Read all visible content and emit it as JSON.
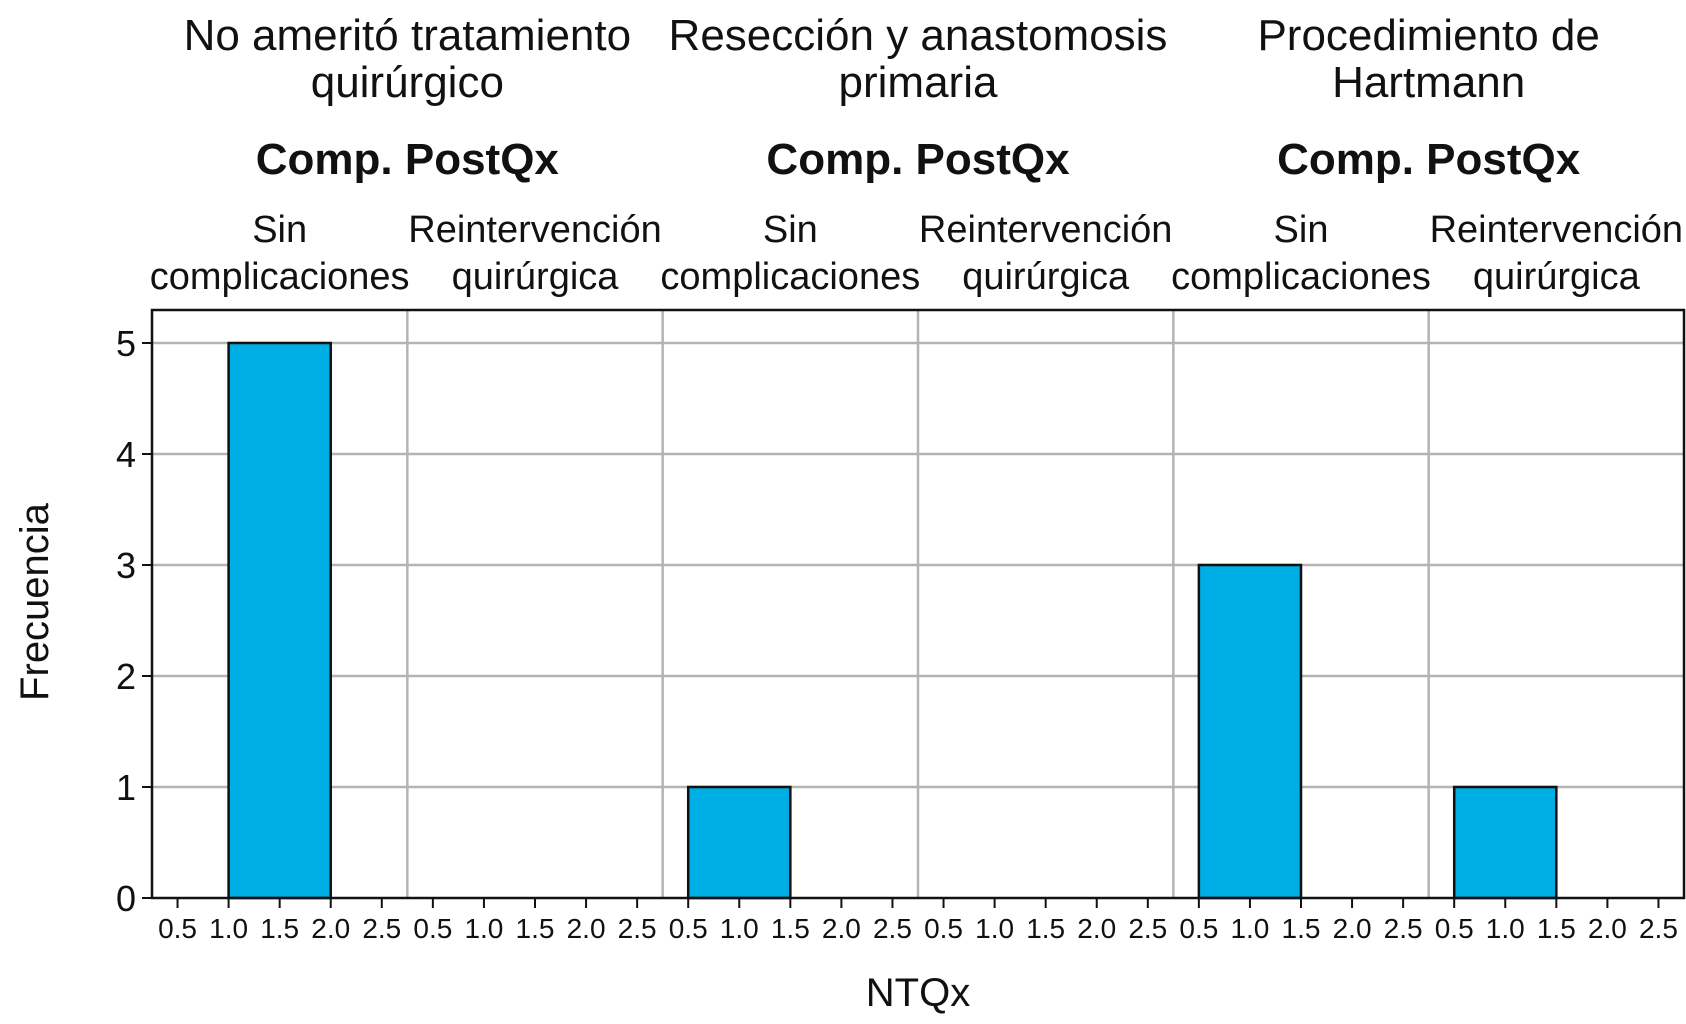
{
  "chart_data": {
    "type": "bar",
    "xlabel": "NTQx",
    "ylabel": "Frecuencia",
    "ylim": [
      0,
      5
    ],
    "yticks": [
      "0",
      "1",
      "2",
      "3",
      "4",
      "5"
    ],
    "xticks": [
      "0.5",
      "1.0",
      "1.5",
      "2.0",
      "2.5"
    ],
    "xlim": [
      0.25,
      2.75
    ],
    "bar_width": 1.0,
    "bar_color": "#00aee6",
    "grid": true,
    "strip_label": "Comp. PostQx",
    "groups": [
      {
        "title": [
          "No ameritó tratamiento",
          "quirúrgico"
        ],
        "panels": [
          {
            "label": [
              "Sin",
              "complicaciones"
            ],
            "bars": [
              {
                "x": 1.5,
                "value": 5
              }
            ]
          },
          {
            "label": [
              "Reintervención",
              "quirúrgica"
            ],
            "bars": []
          }
        ]
      },
      {
        "title": [
          "Resección y anastomosis",
          "primaria"
        ],
        "panels": [
          {
            "label": [
              "Sin",
              "complicaciones"
            ],
            "bars": [
              {
                "x": 1.0,
                "value": 1
              }
            ]
          },
          {
            "label": [
              "Reintervención",
              "quirúrgica"
            ],
            "bars": []
          }
        ]
      },
      {
        "title": [
          "Procedimiento de",
          "Hartmann"
        ],
        "panels": [
          {
            "label": [
              "Sin",
              "complicaciones"
            ],
            "bars": [
              {
                "x": 1.0,
                "value": 3
              }
            ]
          },
          {
            "label": [
              "Reintervención",
              "quirúrgica"
            ],
            "bars": [
              {
                "x": 1.0,
                "value": 1
              }
            ]
          }
        ]
      }
    ]
  }
}
